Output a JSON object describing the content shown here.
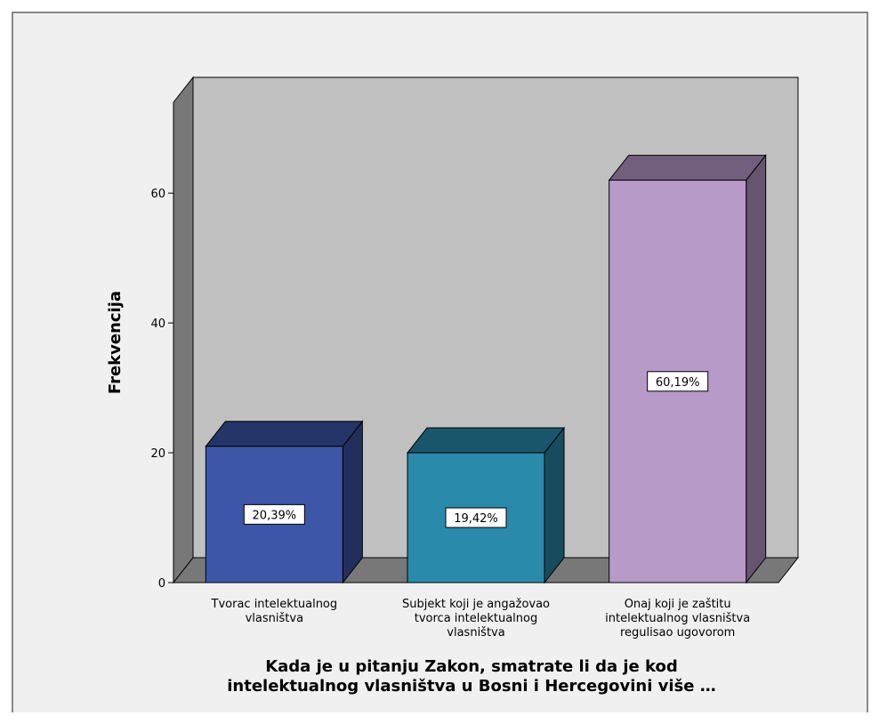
{
  "chart_data": {
    "type": "bar3d",
    "x_label": "Kada je u pitanju Zakon, smatrate li da je kod\nintelektualnog vlasništva u Bosni i Hercegovini više …",
    "y_label": "Frekvencija",
    "categories": [
      "Tvorac intelektualnog\nvlasništva",
      "Subjekt koji je angažovao\ntvorca intelektualnog\nvlasništva",
      "Onaj koji je zaštitu\nintelektualnog vlasništva\nregulisao ugovorom"
    ],
    "values": [
      21,
      20,
      62
    ],
    "percents": [
      20.39,
      19.42,
      60.19
    ],
    "percent_labels": [
      "20,39%",
      "19,42%",
      "60,19%"
    ],
    "colors": [
      "#3d56a8",
      "#2a8aac",
      "#b89ac9"
    ],
    "ylim": [
      0,
      74
    ],
    "yticks": [
      0,
      20,
      40,
      60
    ]
  }
}
